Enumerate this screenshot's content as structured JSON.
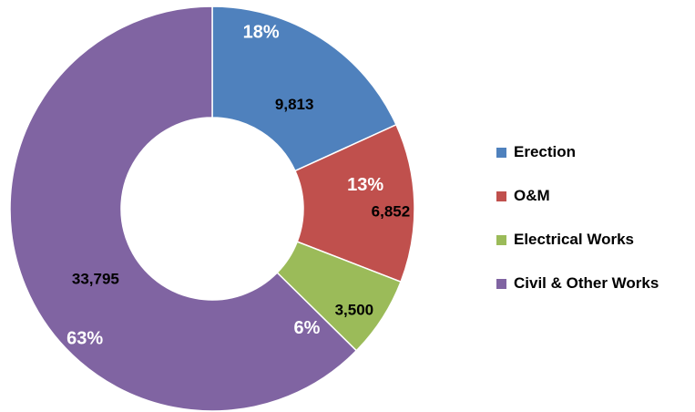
{
  "chart_data": {
    "type": "pie",
    "donut": true,
    "categories": [
      "Erection",
      "O&M",
      "Electrical Works",
      "Civil & Other Works"
    ],
    "values": [
      9813,
      6852,
      3500,
      33795
    ],
    "value_labels": [
      "9,813",
      "6,852",
      "3,500",
      "33,795"
    ],
    "percent_labels": [
      "18%",
      "13%",
      "6%",
      "63%"
    ],
    "colors": [
      "#4F81BD",
      "#C0504D",
      "#9BBB59",
      "#8064A2"
    ],
    "legend_position": "right",
    "title": ""
  }
}
